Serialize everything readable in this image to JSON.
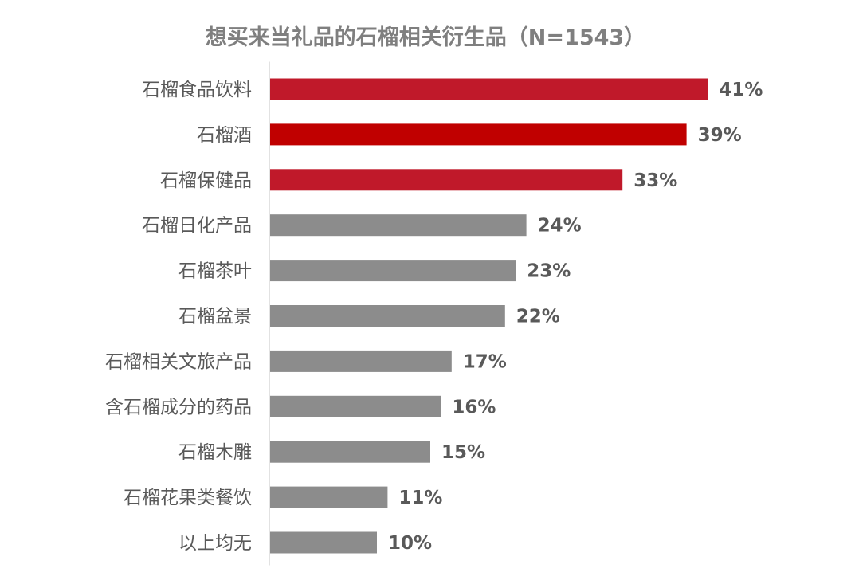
{
  "chart_data": {
    "type": "bar",
    "orientation": "horizontal",
    "title": "想买来当礼品的石榴相关衍生品（N=1543）",
    "value_suffix": "%",
    "xlim": [
      0,
      45
    ],
    "grid": false,
    "legend": "none",
    "categories": [
      "石榴食品饮料",
      "石榴酒",
      "石榴保健品",
      "石榴日化产品",
      "石榴茶叶",
      "石榴盆景",
      "石榴相关文旅产品",
      "含石榴成分的药品",
      "石榴木雕",
      "石榴花果类餐饮",
      "以上均无"
    ],
    "values": [
      41,
      39,
      33,
      24,
      23,
      22,
      17,
      16,
      15,
      11,
      10
    ],
    "bar_colors": [
      "#c0192a",
      "#c00000",
      "#c0192a",
      "#8c8c8c",
      "#8c8c8c",
      "#8c8c8c",
      "#8c8c8c",
      "#8c8c8c",
      "#8c8c8c",
      "#8c8c8c",
      "#8c8c8c"
    ],
    "axis_color": "#d9d9d9"
  }
}
